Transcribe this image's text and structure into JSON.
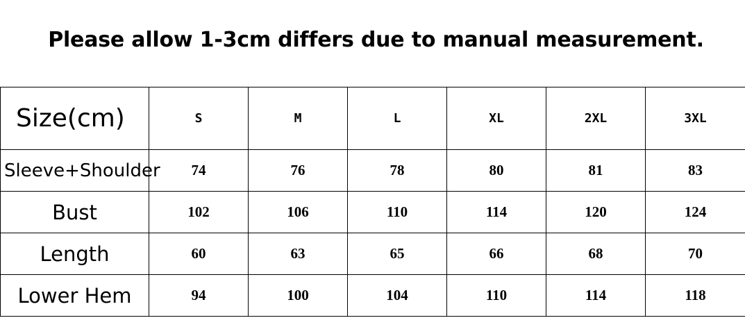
{
  "title": "Please allow 1-3cm differs due to manual measurement.",
  "table": {
    "corner": "Size(cm)",
    "sizes": [
      "S",
      "M",
      "L",
      "XL",
      "2XL",
      "3XL"
    ],
    "rows": [
      {
        "label": "Sleeve+Shoulder",
        "values": [
          "74",
          "76",
          "78",
          "80",
          "81",
          "83"
        ]
      },
      {
        "label": "Bust",
        "values": [
          "102",
          "106",
          "110",
          "114",
          "120",
          "124"
        ]
      },
      {
        "label": "Length",
        "values": [
          "60",
          "63",
          "65",
          "66",
          "68",
          "70"
        ]
      },
      {
        "label": "Lower Hem",
        "values": [
          "94",
          "100",
          "104",
          "110",
          "114",
          "118"
        ]
      }
    ]
  }
}
